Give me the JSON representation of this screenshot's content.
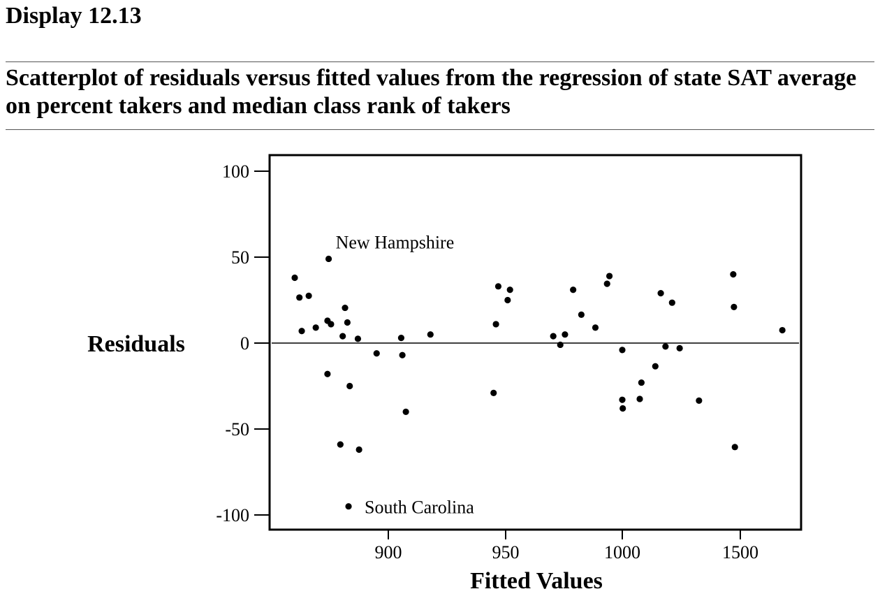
{
  "header": {
    "display_label": "Display 12.13",
    "title": "Scatterplot of residuals versus fitted values from the regression of state SAT average on percent takers and median class rank of takers"
  },
  "chart_data": {
    "type": "scatter",
    "title": "Scatterplot of residuals versus fitted values from the regression of state SAT average on percent takers and median class rank of takers",
    "xlabel": "Fitted Values",
    "ylabel": "Residuals",
    "x_tick_labels": [
      "900",
      "950",
      "1000",
      "1500"
    ],
    "y_ticks": [
      100,
      50,
      0,
      -50,
      -100
    ],
    "y_tick_labels": [
      "100",
      "50",
      "0",
      "-50",
      "-100"
    ],
    "ylim": [
      -108,
      100
    ],
    "reference_line_y": 0,
    "annotations": [
      {
        "text": "New Hampshire",
        "point_index": 6
      },
      {
        "text": "South Carolina",
        "point_index": 14
      }
    ],
    "points": [
      {
        "x": 860,
        "y": 38
      },
      {
        "x": 862,
        "y": 26.5
      },
      {
        "x": 863,
        "y": 7
      },
      {
        "x": 866,
        "y": 27.5
      },
      {
        "x": 869,
        "y": 9
      },
      {
        "x": 874,
        "y": 13
      },
      {
        "x": 874.5,
        "y": 49
      },
      {
        "x": 874,
        "y": -18
      },
      {
        "x": 875.5,
        "y": 11
      },
      {
        "x": 879.5,
        "y": -59
      },
      {
        "x": 880.5,
        "y": 4
      },
      {
        "x": 881.5,
        "y": 20.5
      },
      {
        "x": 882.5,
        "y": 12
      },
      {
        "x": 883.5,
        "y": -25
      },
      {
        "x": 883,
        "y": -95
      },
      {
        "x": 887,
        "y": 2.5
      },
      {
        "x": 887.5,
        "y": -62
      },
      {
        "x": 895,
        "y": -6
      },
      {
        "x": 905.5,
        "y": 3
      },
      {
        "x": 906,
        "y": -7
      },
      {
        "x": 907.5,
        "y": -40
      },
      {
        "x": 918,
        "y": 5
      },
      {
        "x": 945,
        "y": -29
      },
      {
        "x": 946,
        "y": 11
      },
      {
        "x": 947,
        "y": 33
      },
      {
        "x": 951,
        "y": 25
      },
      {
        "x": 952,
        "y": 31
      },
      {
        "x": 970.5,
        "y": 4
      },
      {
        "x": 973.5,
        "y": -1
      },
      {
        "x": 975.5,
        "y": 5
      },
      {
        "x": 979,
        "y": 31
      },
      {
        "x": 982.5,
        "y": 16.5
      },
      {
        "x": 988.5,
        "y": 9
      },
      {
        "x": 993.5,
        "y": 34.5
      },
      {
        "x": 994.5,
        "y": 39
      },
      {
        "x": 1000,
        "y": -4
      },
      {
        "x": 1000,
        "y": -33
      },
      {
        "x": 1002,
        "y": -38
      },
      {
        "x": 1081,
        "y": -23
      },
      {
        "x": 1074,
        "y": -32.5
      },
      {
        "x": 1163,
        "y": 29
      },
      {
        "x": 1140,
        "y": -13.5
      },
      {
        "x": 1183,
        "y": -2
      },
      {
        "x": 1211,
        "y": 23.5
      },
      {
        "x": 1243,
        "y": -3
      },
      {
        "x": 1325,
        "y": -33.5
      },
      {
        "x": 1470,
        "y": 40
      },
      {
        "x": 1473,
        "y": 21
      },
      {
        "x": 1477,
        "y": -60.5
      },
      {
        "x": 1678,
        "y": 7.5
      }
    ]
  }
}
